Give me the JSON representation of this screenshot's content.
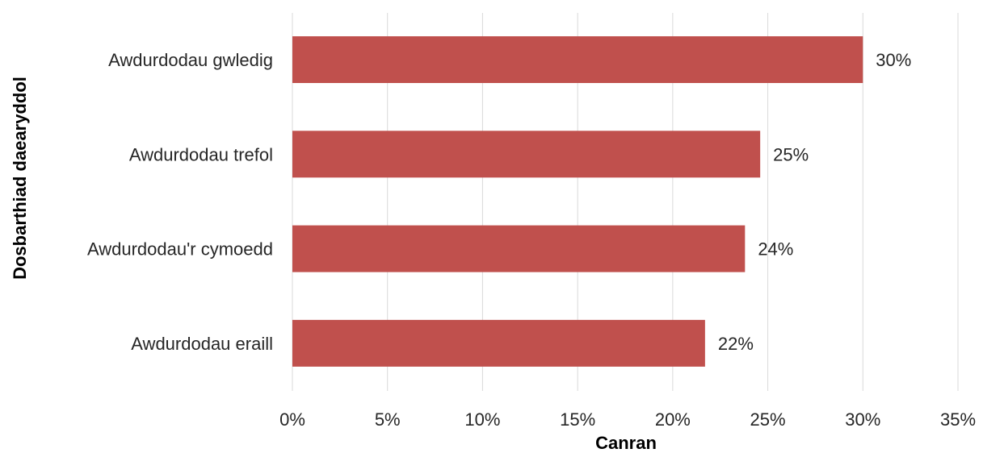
{
  "chart_data": {
    "type": "bar",
    "orientation": "horizontal",
    "title": "",
    "xlabel": "Canran",
    "ylabel": "Dosbarthiad daearyddol",
    "categories": [
      "Awdurdodau gwledig",
      "Awdurdodau trefol",
      "Awdurdodau'r cymoedd",
      "Awdurdodau eraill"
    ],
    "values": [
      30,
      24.6,
      23.8,
      21.7
    ],
    "data_labels": [
      "30%",
      "25%",
      "24%",
      "22%"
    ],
    "xlim": [
      0,
      35
    ],
    "xticks": [
      0,
      5,
      10,
      15,
      20,
      25,
      30,
      35
    ],
    "xtick_labels": [
      "0%",
      "5%",
      "10%",
      "15%",
      "20%",
      "25%",
      "30%",
      "35%"
    ],
    "grid": "vertical",
    "legend": "none",
    "bar_color": "#c0504d",
    "grid_color": "#d9d9d9"
  }
}
